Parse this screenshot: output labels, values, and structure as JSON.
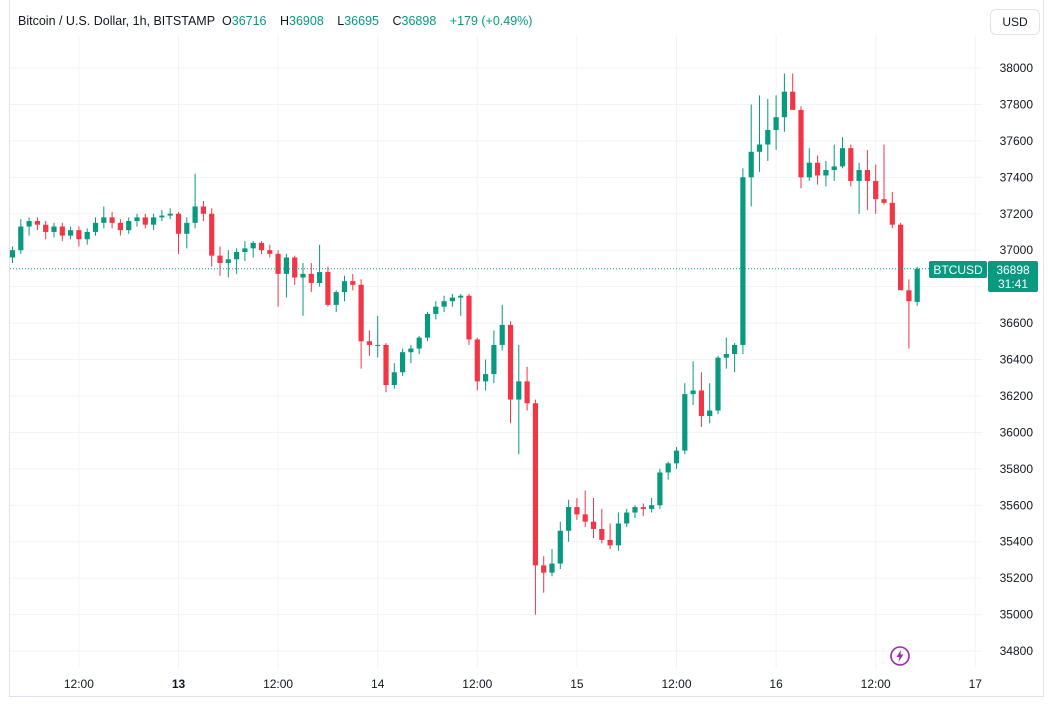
{
  "header": {
    "symbol": "Bitcoin / U.S. Dollar, 1h, BITSTAMP",
    "o_key": "O",
    "o_val": "36716",
    "h_key": "H",
    "h_val": "36908",
    "l_key": "L",
    "l_val": "36695",
    "c_key": "C",
    "c_val": "36898",
    "change": "+179 (+0.49%)"
  },
  "currency": "USD",
  "price_label": {
    "ticker": "BTCUSD",
    "price": "36898",
    "countdown": "31:41"
  },
  "colors": {
    "up": "#089981",
    "down": "#f23645",
    "grid": "#f0f3fa",
    "bolt": "#9c27b0"
  },
  "icons": {
    "alert": "lightning-bolt-icon"
  },
  "chart_data": {
    "type": "candlestick",
    "title": "Bitcoin / U.S. Dollar, 1h, BITSTAMP",
    "ylim": [
      34700,
      38150
    ],
    "y_ticks": [
      34800,
      35000,
      35200,
      35400,
      35600,
      35800,
      36000,
      36200,
      36400,
      36600,
      36800,
      37000,
      37200,
      37400,
      37600,
      37800,
      38000
    ],
    "x_ticks": [
      {
        "label": "12:00",
        "index": 8,
        "bold": false
      },
      {
        "label": "13",
        "index": 20,
        "bold": true
      },
      {
        "label": "12:00",
        "index": 32,
        "bold": false
      },
      {
        "label": "14",
        "index": 44,
        "bold": false
      },
      {
        "label": "12:00",
        "index": 56,
        "bold": false
      },
      {
        "label": "15",
        "index": 68,
        "bold": false
      },
      {
        "label": "12:00",
        "index": 80,
        "bold": false
      },
      {
        "label": "16",
        "index": 92,
        "bold": false
      },
      {
        "label": "12:00",
        "index": 104,
        "bold": false
      },
      {
        "label": "17",
        "index": 116,
        "bold": false
      }
    ],
    "last_price": 36898,
    "candles": [
      [
        36960,
        37020,
        36930,
        37000
      ],
      [
        37000,
        37170,
        36980,
        37130
      ],
      [
        37130,
        37180,
        37080,
        37160
      ],
      [
        37160,
        37180,
        37110,
        37140
      ],
      [
        37140,
        37160,
        37060,
        37100
      ],
      [
        37100,
        37150,
        37070,
        37130
      ],
      [
        37130,
        37150,
        37050,
        37080
      ],
      [
        37080,
        37130,
        37060,
        37110
      ],
      [
        37110,
        37130,
        37020,
        37060
      ],
      [
        37060,
        37120,
        37030,
        37100
      ],
      [
        37100,
        37180,
        37080,
        37150
      ],
      [
        37150,
        37240,
        37120,
        37180
      ],
      [
        37180,
        37210,
        37120,
        37150
      ],
      [
        37150,
        37170,
        37080,
        37110
      ],
      [
        37110,
        37180,
        37090,
        37160
      ],
      [
        37160,
        37200,
        37130,
        37180
      ],
      [
        37180,
        37200,
        37120,
        37140
      ],
      [
        37140,
        37200,
        37110,
        37180
      ],
      [
        37180,
        37220,
        37160,
        37190
      ],
      [
        37190,
        37230,
        37170,
        37200
      ],
      [
        37200,
        37210,
        36980,
        37090
      ],
      [
        37090,
        37180,
        37010,
        37150
      ],
      [
        37150,
        37420,
        37120,
        37240
      ],
      [
        37240,
        37270,
        37160,
        37200
      ],
      [
        37200,
        37230,
        36910,
        36970
      ],
      [
        36970,
        37020,
        36860,
        36930
      ],
      [
        36930,
        37000,
        36850,
        36950
      ],
      [
        36950,
        37010,
        36870,
        36990
      ],
      [
        36990,
        37050,
        36940,
        37010
      ],
      [
        37010,
        37050,
        36960,
        37040
      ],
      [
        37040,
        37050,
        36980,
        37000
      ],
      [
        37000,
        37030,
        36960,
        36980
      ],
      [
        36980,
        37000,
        36690,
        36870
      ],
      [
        36870,
        36980,
        36740,
        36960
      ],
      [
        36960,
        36970,
        36810,
        36850
      ],
      [
        36850,
        36930,
        36640,
        36870
      ],
      [
        36870,
        36930,
        36770,
        36820
      ],
      [
        36820,
        37030,
        36800,
        36880
      ],
      [
        36880,
        36910,
        36690,
        36700
      ],
      [
        36700,
        36780,
        36660,
        36770
      ],
      [
        36770,
        36860,
        36720,
        36830
      ],
      [
        36830,
        36870,
        36780,
        36810
      ],
      [
        36810,
        36840,
        36350,
        36500
      ],
      [
        36500,
        36560,
        36420,
        36480
      ],
      [
        36480,
        36640,
        36410,
        36480
      ],
      [
        36480,
        36490,
        36220,
        36260
      ],
      [
        36260,
        36380,
        36240,
        36330
      ],
      [
        36330,
        36460,
        36310,
        36440
      ],
      [
        36440,
        36480,
        36380,
        36460
      ],
      [
        36460,
        36530,
        36430,
        36520
      ],
      [
        36520,
        36660,
        36500,
        36650
      ],
      [
        36650,
        36720,
        36620,
        36690
      ],
      [
        36690,
        36750,
        36660,
        36720
      ],
      [
        36720,
        36760,
        36690,
        36740
      ],
      [
        36740,
        36760,
        36640,
        36750
      ],
      [
        36750,
        36760,
        36480,
        36510
      ],
      [
        36510,
        36520,
        36230,
        36280
      ],
      [
        36280,
        36400,
        36230,
        36320
      ],
      [
        36320,
        36560,
        36270,
        36480
      ],
      [
        36480,
        36700,
        36450,
        36590
      ],
      [
        36590,
        36610,
        36050,
        36180
      ],
      [
        36180,
        36480,
        35880,
        36280
      ],
      [
        36280,
        36360,
        36120,
        36160
      ],
      [
        36160,
        36180,
        35000,
        35270
      ],
      [
        35270,
        35320,
        35120,
        35230
      ],
      [
        35230,
        35360,
        35210,
        35280
      ],
      [
        35280,
        35510,
        35250,
        35460
      ],
      [
        35460,
        35630,
        35400,
        35590
      ],
      [
        35590,
        35640,
        35520,
        35550
      ],
      [
        35550,
        35680,
        35480,
        35510
      ],
      [
        35510,
        35640,
        35420,
        35470
      ],
      [
        35470,
        35580,
        35390,
        35410
      ],
      [
        35410,
        35500,
        35360,
        35380
      ],
      [
        35380,
        35560,
        35350,
        35500
      ],
      [
        35500,
        35580,
        35480,
        35560
      ],
      [
        35560,
        35600,
        35530,
        35590
      ],
      [
        35590,
        35610,
        35540,
        35580
      ],
      [
        35580,
        35640,
        35560,
        35600
      ],
      [
        35600,
        35800,
        35580,
        35780
      ],
      [
        35780,
        35840,
        35740,
        35830
      ],
      [
        35830,
        35920,
        35800,
        35900
      ],
      [
        35900,
        36270,
        35880,
        36210
      ],
      [
        36210,
        36390,
        36150,
        36230
      ],
      [
        36230,
        36330,
        36030,
        36090
      ],
      [
        36090,
        36270,
        36050,
        36120
      ],
      [
        36120,
        36420,
        36100,
        36410
      ],
      [
        36410,
        36520,
        36350,
        36430
      ],
      [
        36430,
        36490,
        36330,
        36480
      ],
      [
        36480,
        37450,
        36430,
        37400
      ],
      [
        37400,
        37800,
        37240,
        37540
      ],
      [
        37540,
        37850,
        37430,
        37580
      ],
      [
        37580,
        37830,
        37490,
        37660
      ],
      [
        37660,
        37850,
        37550,
        37730
      ],
      [
        37730,
        37970,
        37650,
        37870
      ],
      [
        37870,
        37970,
        37780,
        37770
      ],
      [
        37770,
        37790,
        37340,
        37400
      ],
      [
        37400,
        37560,
        37380,
        37480
      ],
      [
        37480,
        37520,
        37360,
        37410
      ],
      [
        37410,
        37490,
        37350,
        37440
      ],
      [
        37440,
        37580,
        37380,
        37460
      ],
      [
        37460,
        37620,
        37450,
        37560
      ],
      [
        37560,
        37580,
        37350,
        37380
      ],
      [
        37380,
        37480,
        37200,
        37440
      ],
      [
        37440,
        37550,
        37220,
        37380
      ],
      [
        37380,
        37470,
        37200,
        37280
      ],
      [
        37280,
        37580,
        37250,
        37260
      ],
      [
        37260,
        37320,
        37120,
        37140
      ],
      [
        37140,
        37150,
        36810,
        36780
      ],
      [
        36780,
        36840,
        36460,
        36720
      ],
      [
        36716,
        36908,
        36695,
        36898
      ]
    ]
  }
}
